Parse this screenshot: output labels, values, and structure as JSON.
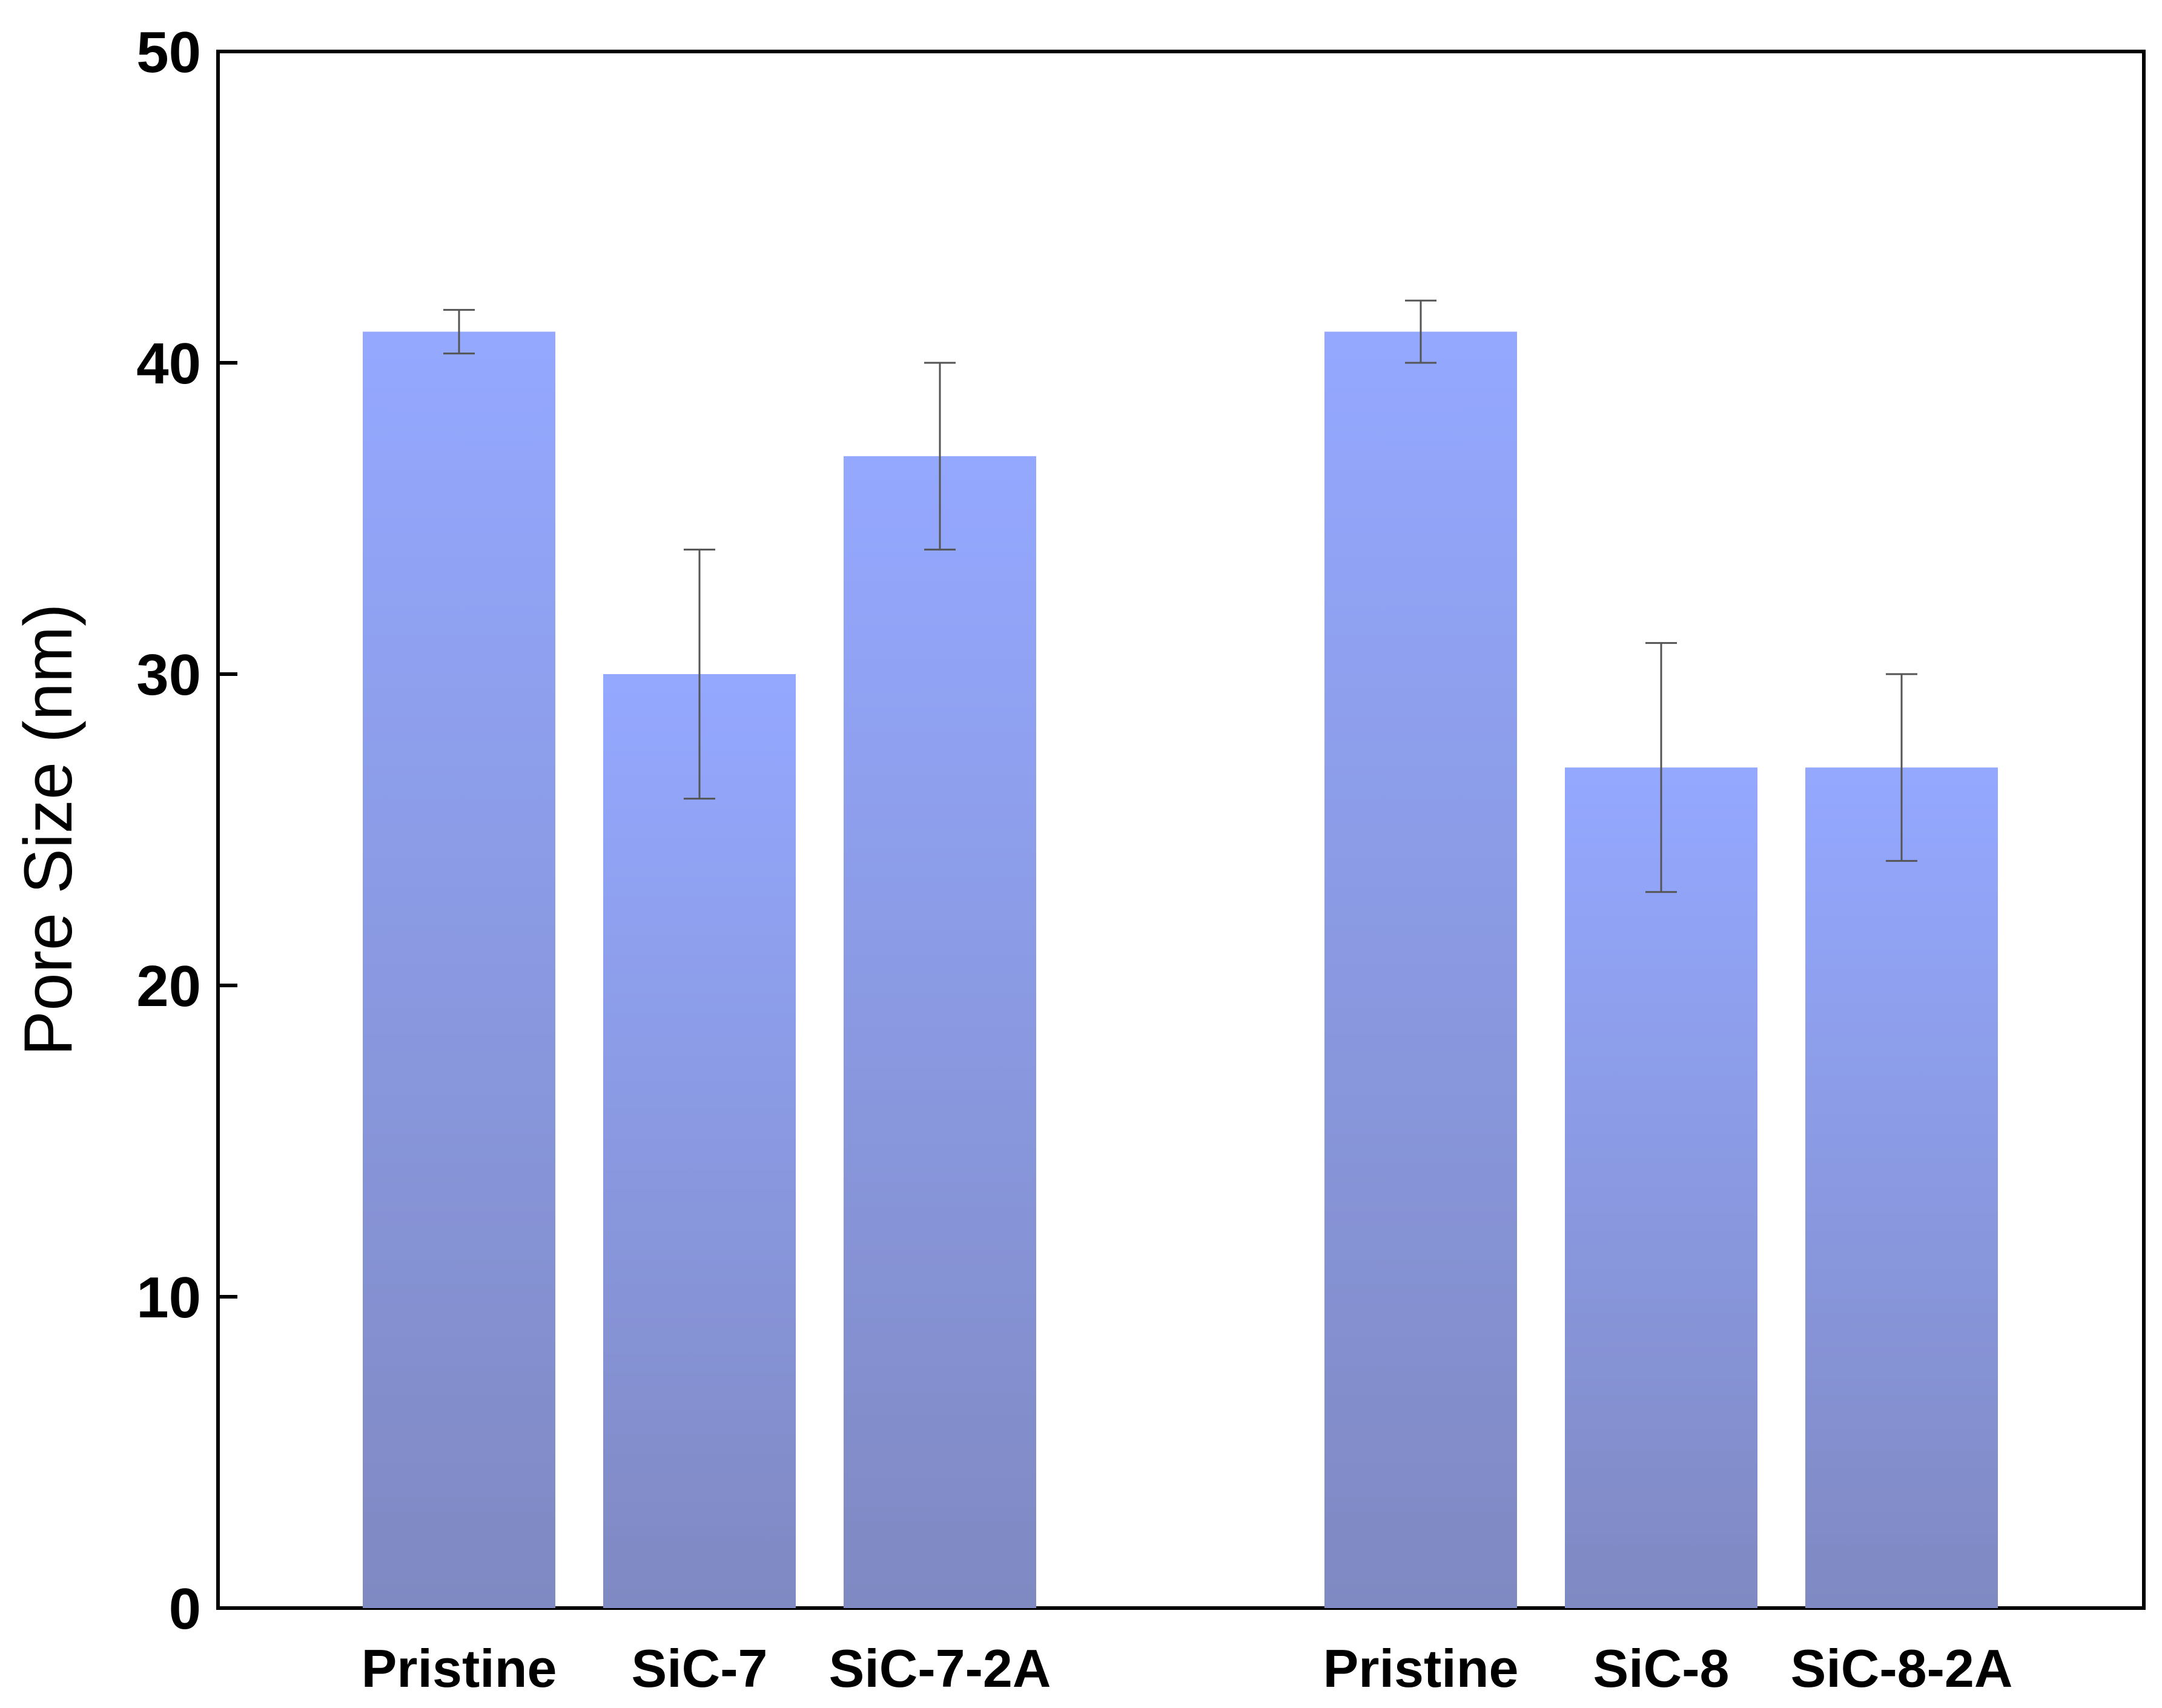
{
  "chart_data": {
    "type": "bar",
    "title": "",
    "xlabel": "",
    "ylabel": "Pore Size (nm)",
    "ylim": [
      0,
      50
    ],
    "yticks": [
      0,
      10,
      20,
      30,
      40,
      50
    ],
    "grid": false,
    "legend": "none",
    "bar_color_top": "#94a8ff",
    "bar_color_bottom": "#7f89c2",
    "error_bar_color": "#555555",
    "groups": [
      {
        "categories": [
          "Pristine",
          "SiC-7",
          "SiC-7-2A"
        ],
        "values": [
          41,
          30,
          37
        ],
        "errors": [
          {
            "low": 40.3,
            "high": 41.7
          },
          {
            "low": 26,
            "high": 34
          },
          {
            "low": 34,
            "high": 40
          }
        ]
      },
      {
        "categories": [
          "Pristine",
          "SiC-8",
          "SiC-8-2A"
        ],
        "values": [
          41,
          27,
          27
        ],
        "errors": [
          {
            "low": 40,
            "high": 42
          },
          {
            "low": 23,
            "high": 31
          },
          {
            "low": 24,
            "high": 30
          }
        ]
      }
    ]
  }
}
